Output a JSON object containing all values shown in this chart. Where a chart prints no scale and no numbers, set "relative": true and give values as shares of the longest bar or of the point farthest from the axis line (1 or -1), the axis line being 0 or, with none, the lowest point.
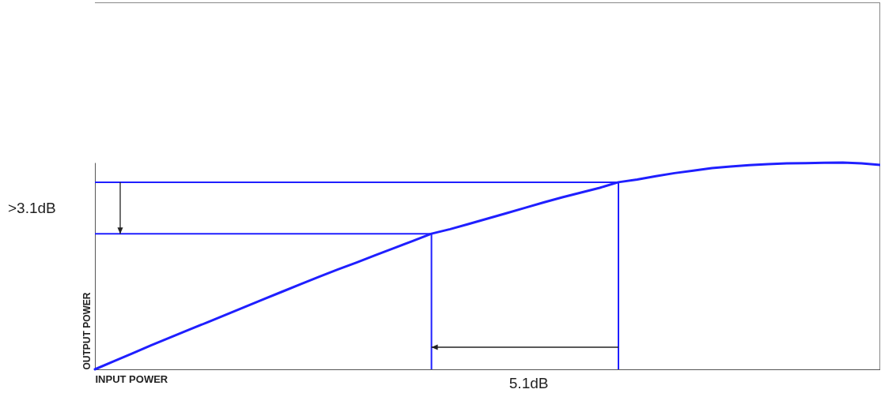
{
  "chart_data": {
    "type": "line",
    "relative": true,
    "xlabel": "INPUT POWER",
    "ylabel": "OUTPUT POWER",
    "line_style": "solid",
    "annotations": [
      ">3.1dB",
      "5.1dB"
    ],
    "categories": [
      null,
      null,
      null,
      null,
      null,
      null,
      null,
      null,
      null,
      null,
      null,
      null,
      null,
      null,
      null,
      null,
      null,
      null,
      null,
      null,
      null,
      null,
      null,
      null,
      null,
      null,
      null,
      null,
      null,
      null,
      null,
      null,
      null,
      null,
      null,
      null,
      null,
      null,
      null,
      null,
      null,
      null,
      null
    ],
    "series": [
      {
        "color": "#1f1fff",
        "values": [
          0,
          0.039,
          0.077,
          0.116,
          0.153,
          0.19,
          0.227,
          0.264,
          0.301,
          0.338,
          0.375,
          0.412,
          0.448,
          0.483,
          0.517,
          0.552,
          0.586,
          0.621,
          0.656,
          0.678,
          0.703,
          0.729,
          0.755,
          0.781,
          0.807,
          0.832,
          0.855,
          0.878,
          0.905,
          0.918,
          0.934,
          0.949,
          0.961,
          0.973,
          0.981,
          0.988,
          0.992,
          0.996,
          0.997,
          0.999,
          1.0,
          0.996,
          0.989
        ]
      }
    ],
    "ref_lines": [
      {
        "axis": "y",
        "value": 0.656,
        "color": "#1f1fff"
      },
      {
        "axis": "y",
        "value": 0.905,
        "color": "#1f1fff"
      }
    ]
  }
}
